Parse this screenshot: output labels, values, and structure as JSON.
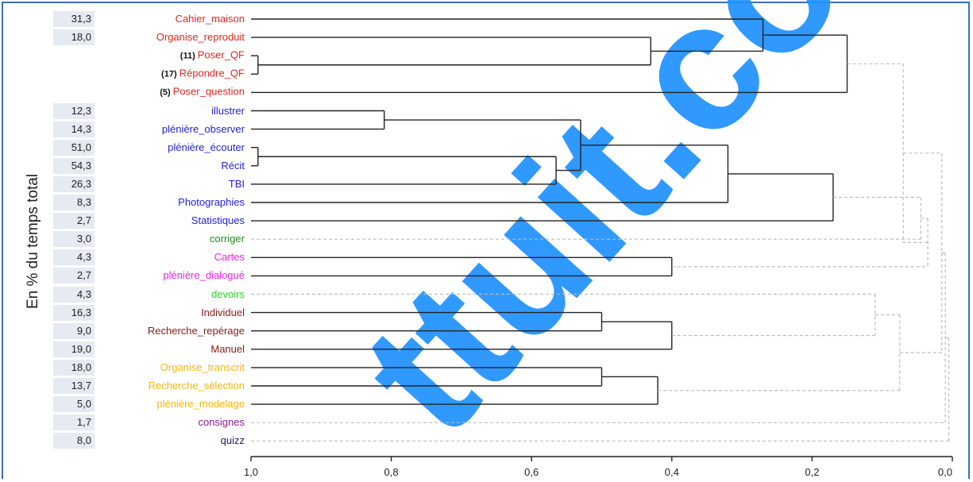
{
  "y_axis_label": "En % du temps total",
  "x_ticks": [
    "1,0",
    "0,8",
    "0,6",
    "0,4",
    "0,2",
    "0,0"
  ],
  "x_tick_values": [
    1.0,
    0.8,
    0.6,
    0.4,
    0.2,
    0.0
  ],
  "leaves": [
    {
      "pct": "31,3",
      "count": "",
      "label": "Cahier_maison",
      "color": "#e52521"
    },
    {
      "pct": "18,0",
      "count": "",
      "label": "Organise_reproduit",
      "color": "#e52521"
    },
    {
      "pct": "",
      "count": "(11)",
      "label": "Poser_QF",
      "color": "#e52521"
    },
    {
      "pct": "",
      "count": "(17)",
      "label": "Répondre_QF",
      "color": "#e52521"
    },
    {
      "pct": "",
      "count": "(5)",
      "label": "Poser_question",
      "color": "#e52521"
    },
    {
      "pct": "12,3",
      "count": "",
      "label": "illustrer",
      "color": "#2222dd"
    },
    {
      "pct": "14,3",
      "count": "",
      "label": "plénière_observer",
      "color": "#2222dd"
    },
    {
      "pct": "51,0",
      "count": "",
      "label": "plénière_écouter",
      "color": "#2222dd"
    },
    {
      "pct": "54,3",
      "count": "",
      "label": "Récit",
      "color": "#2222dd"
    },
    {
      "pct": "26,3",
      "count": "",
      "label": "TBI",
      "color": "#2222dd"
    },
    {
      "pct": "8,3",
      "count": "",
      "label": "Photographies",
      "color": "#2222dd"
    },
    {
      "pct": "2,7",
      "count": "",
      "label": "Statistiques",
      "color": "#2222dd"
    },
    {
      "pct": "3,0",
      "count": "",
      "label": "corriger",
      "color": "#1a8c1a"
    },
    {
      "pct": "4,3",
      "count": "",
      "label": "Cartes",
      "color": "#ee22ee"
    },
    {
      "pct": "2,7",
      "count": "",
      "label": "plénière_dialogué",
      "color": "#ee22ee"
    },
    {
      "pct": "4,3",
      "count": "",
      "label": "devoirs",
      "color": "#33cc33"
    },
    {
      "pct": "16,3",
      "count": "",
      "label": "Individuel",
      "color": "#8b1a1a"
    },
    {
      "pct": "9,0",
      "count": "",
      "label": "Recherche_repérage",
      "color": "#8b1a1a"
    },
    {
      "pct": "19,0",
      "count": "",
      "label": "Manuel",
      "color": "#8b1a1a"
    },
    {
      "pct": "18,0",
      "count": "",
      "label": "Organise_transcrit",
      "color": "#f2b80c"
    },
    {
      "pct": "13,7",
      "count": "",
      "label": "Recherche_sélection",
      "color": "#f2b80c"
    },
    {
      "pct": "5,0",
      "count": "",
      "label": "plénière_modelage",
      "color": "#f2b80c"
    },
    {
      "pct": "1,7",
      "count": "",
      "label": "consignes",
      "color": "#8b1a8b"
    },
    {
      "pct": "8,0",
      "count": "",
      "label": "quizz",
      "color": "#1a1a7a"
    }
  ],
  "merges": [
    {
      "a": "L2",
      "b": "L3",
      "h": 0.99,
      "style": "solid"
    },
    {
      "a": "L1",
      "b": "N0",
      "h": 0.43,
      "style": "solid"
    },
    {
      "a": "L0",
      "b": "N1",
      "h": 0.27,
      "style": "solid"
    },
    {
      "a": "N2",
      "b": "L4",
      "h": 0.15,
      "style": "solid"
    },
    {
      "a": "L5",
      "b": "L6",
      "h": 0.81,
      "style": "solid"
    },
    {
      "a": "L7",
      "b": "L8",
      "h": 0.99,
      "style": "solid"
    },
    {
      "a": "N5",
      "b": "L9",
      "h": 0.565,
      "style": "solid"
    },
    {
      "a": "N4",
      "b": "N6",
      "h": 0.53,
      "style": "solid"
    },
    {
      "a": "N7",
      "b": "L10",
      "h": 0.32,
      "style": "solid"
    },
    {
      "a": "N8",
      "b": "L11",
      "h": 0.17,
      "style": "solid"
    },
    {
      "a": "L13",
      "b": "L14",
      "h": 0.4,
      "style": "solid"
    },
    {
      "a": "L16",
      "b": "L17",
      "h": 0.5,
      "style": "solid"
    },
    {
      "a": "N11",
      "b": "L18",
      "h": 0.4,
      "style": "solid"
    },
    {
      "a": "L19",
      "b": "L20",
      "h": 0.5,
      "style": "solid"
    },
    {
      "a": "N13",
      "b": "L21",
      "h": 0.42,
      "style": "solid"
    },
    {
      "a": "N9",
      "b": "L12",
      "h": 0.045,
      "style": "dashed"
    },
    {
      "a": "N15",
      "b": "N10",
      "h": 0.035,
      "style": "dashed"
    },
    {
      "a": "L15",
      "b": "N12",
      "h": 0.11,
      "style": "dashed"
    },
    {
      "a": "N17",
      "b": "N14",
      "h": 0.075,
      "style": "dashed"
    },
    {
      "a": "N3",
      "b": "N16",
      "h": 0.07,
      "style": "dashed"
    },
    {
      "a": "N19",
      "b": "N18",
      "h": 0.015,
      "style": "dashed"
    },
    {
      "a": "N20",
      "b": "L22",
      "h": 0.01,
      "style": "dashed"
    },
    {
      "a": "N21",
      "b": "L23",
      "h": 0.005,
      "style": "dashed"
    }
  ],
  "colors": {
    "frame": "#3b6fb6",
    "solid_line": "#222222",
    "dashed_line": "#bbbbbb",
    "watermark": "#1e90ff"
  }
}
